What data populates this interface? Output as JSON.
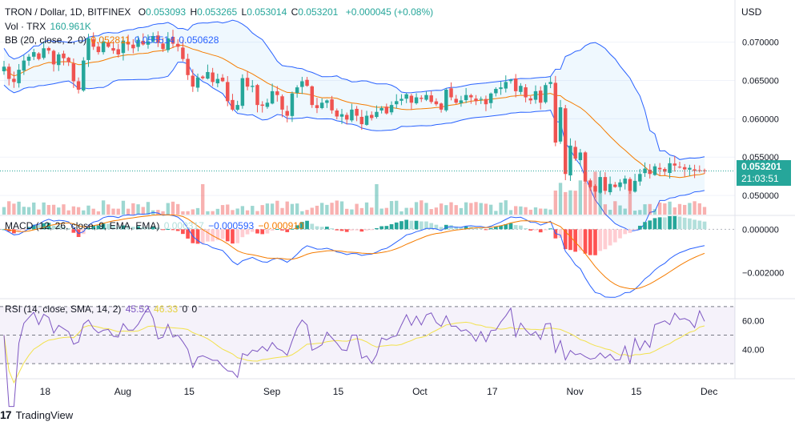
{
  "header": {
    "symbol": "TRON / Dollar, 1D, BITFINEX",
    "ohlc": [
      {
        "label": "O",
        "value": "0.053093"
      },
      {
        "label": "H",
        "value": "0.053265"
      },
      {
        "label": "L",
        "value": "0.053014"
      },
      {
        "label": "C",
        "value": "0.053201"
      }
    ],
    "change": "+0.000045 (+0.08%)",
    "currency": "USD"
  },
  "indicators": {
    "volume": {
      "label": "Vol · TRX",
      "value": "160.961K"
    },
    "bb": {
      "label": "BB (20, close, 2, 0)",
      "values": [
        "0.052811",
        "0.055514",
        "0.050628"
      ]
    },
    "macd": {
      "label": "MACD (12, 26, close, 9, EMA, EMA)",
      "values": [
        "0.000317",
        "−0.000593",
        "−0.000910"
      ]
    },
    "rsi": {
      "label": "RSI (14, close, SMA, 14, 2)",
      "values": [
        "45.52",
        "46.33",
        "0",
        "0"
      ]
    }
  },
  "price_tag": {
    "price": "0.053201",
    "countdown": "21:03:51"
  },
  "branding": {
    "logo": "17",
    "name": "TradingView"
  },
  "colors": {
    "up": "#26a69a",
    "down": "#ef5350",
    "bb_band": "#2962ff",
    "bb_basis": "#f57c00",
    "rsi": "#7e57c2",
    "rsi_ma": "#f2e14c"
  },
  "chart_data": {
    "type": "candlestick",
    "x_ticks": [
      "18",
      "Aug",
      "15",
      "Sep",
      "15",
      "Oct",
      "17",
      "Nov",
      "15",
      "Dec"
    ],
    "price_axis": {
      "ticks": [
        "0.070000",
        "0.065000",
        "0.060000",
        "0.055000",
        "0.050000"
      ],
      "range": [
        0.0475,
        0.0755
      ]
    },
    "macd_axis": {
      "ticks": [
        "0.000000",
        "−0.002000"
      ],
      "range": [
        -0.00315,
        0.0006
      ]
    },
    "rsi_axis": {
      "ticks": [
        "60.00",
        "40.00"
      ],
      "range": [
        20,
        75
      ],
      "bands": [
        70,
        50,
        30
      ]
    },
    "close": [
      0.0668,
      0.0652,
      0.0648,
      0.0664,
      0.0676,
      0.0681,
      0.0687,
      0.0678,
      0.0692,
      0.0689,
      0.0671,
      0.0684,
      0.0679,
      0.0674,
      0.0649,
      0.0638,
      0.0676,
      0.0705,
      0.0694,
      0.0687,
      0.0701,
      0.0694,
      0.0689,
      0.0684,
      0.0702,
      0.0697,
      0.0692,
      0.0703,
      0.0697,
      0.0701,
      0.0708,
      0.0699,
      0.0691,
      0.0705,
      0.0698,
      0.0694,
      0.0678,
      0.0657,
      0.0642,
      0.0654,
      0.0653,
      0.0661,
      0.0648,
      0.0652,
      0.0649,
      0.0623,
      0.0612,
      0.0618,
      0.0653,
      0.0642,
      0.0643,
      0.0618,
      0.0617,
      0.0621,
      0.0636,
      0.0631,
      0.0612,
      0.0604,
      0.0633,
      0.0641,
      0.0649,
      0.0643,
      0.0618,
      0.0614,
      0.0621,
      0.0624,
      0.0611,
      0.0603,
      0.0606,
      0.0599,
      0.0612,
      0.0604,
      0.0593,
      0.0604,
      0.0601,
      0.0609,
      0.0614,
      0.0607,
      0.0618,
      0.0623,
      0.0626,
      0.0632,
      0.0621,
      0.0628,
      0.0626,
      0.0631,
      0.0622,
      0.0619,
      0.0612,
      0.0638,
      0.0628,
      0.0621,
      0.0624,
      0.0631,
      0.0628,
      0.0623,
      0.0626,
      0.0619,
      0.0633,
      0.0639,
      0.0641,
      0.0648,
      0.0651,
      0.0636,
      0.0643,
      0.0628,
      0.0624,
      0.0636,
      0.0621,
      0.0644,
      0.0648,
      0.0569,
      0.0615,
      0.0528,
      0.0565,
      0.0548,
      0.0556,
      0.0518,
      0.0511,
      0.0505,
      0.0524,
      0.0506,
      0.0515,
      0.0511,
      0.0517,
      0.0522,
      0.0506,
      0.0519,
      0.0528,
      0.0535,
      0.0528,
      0.0538,
      0.0534,
      0.0531,
      0.0542,
      0.0539,
      0.0537,
      0.0534,
      0.0536,
      0.0532,
      0.0533,
      0.0532
    ]
  }
}
